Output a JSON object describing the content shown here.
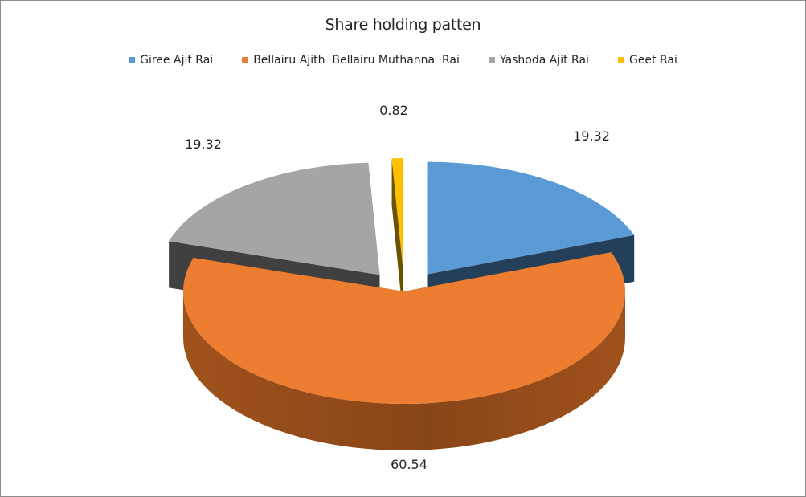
{
  "chart_data": {
    "type": "pie",
    "title": "Share holding patten",
    "legend_position": "top",
    "categories": [
      "Giree Ajit Rai",
      "Bellairu Ajith  Bellairu Muthanna  Rai",
      "Yashoda Ajit Rai",
      "Geet Rai"
    ],
    "values": [
      19.32,
      60.54,
      19.32,
      0.82
    ],
    "value_labels": [
      "19.32",
      "60.54",
      "19.32",
      "0.82"
    ],
    "colors": [
      "#5b9bd5",
      "#ed7d31",
      "#a5a5a5",
      "#ffc000"
    ],
    "side_colors": [
      "#243f5a",
      "#7a3e12",
      "#404040",
      "#6b5200"
    ],
    "style": "3d-exploded"
  }
}
